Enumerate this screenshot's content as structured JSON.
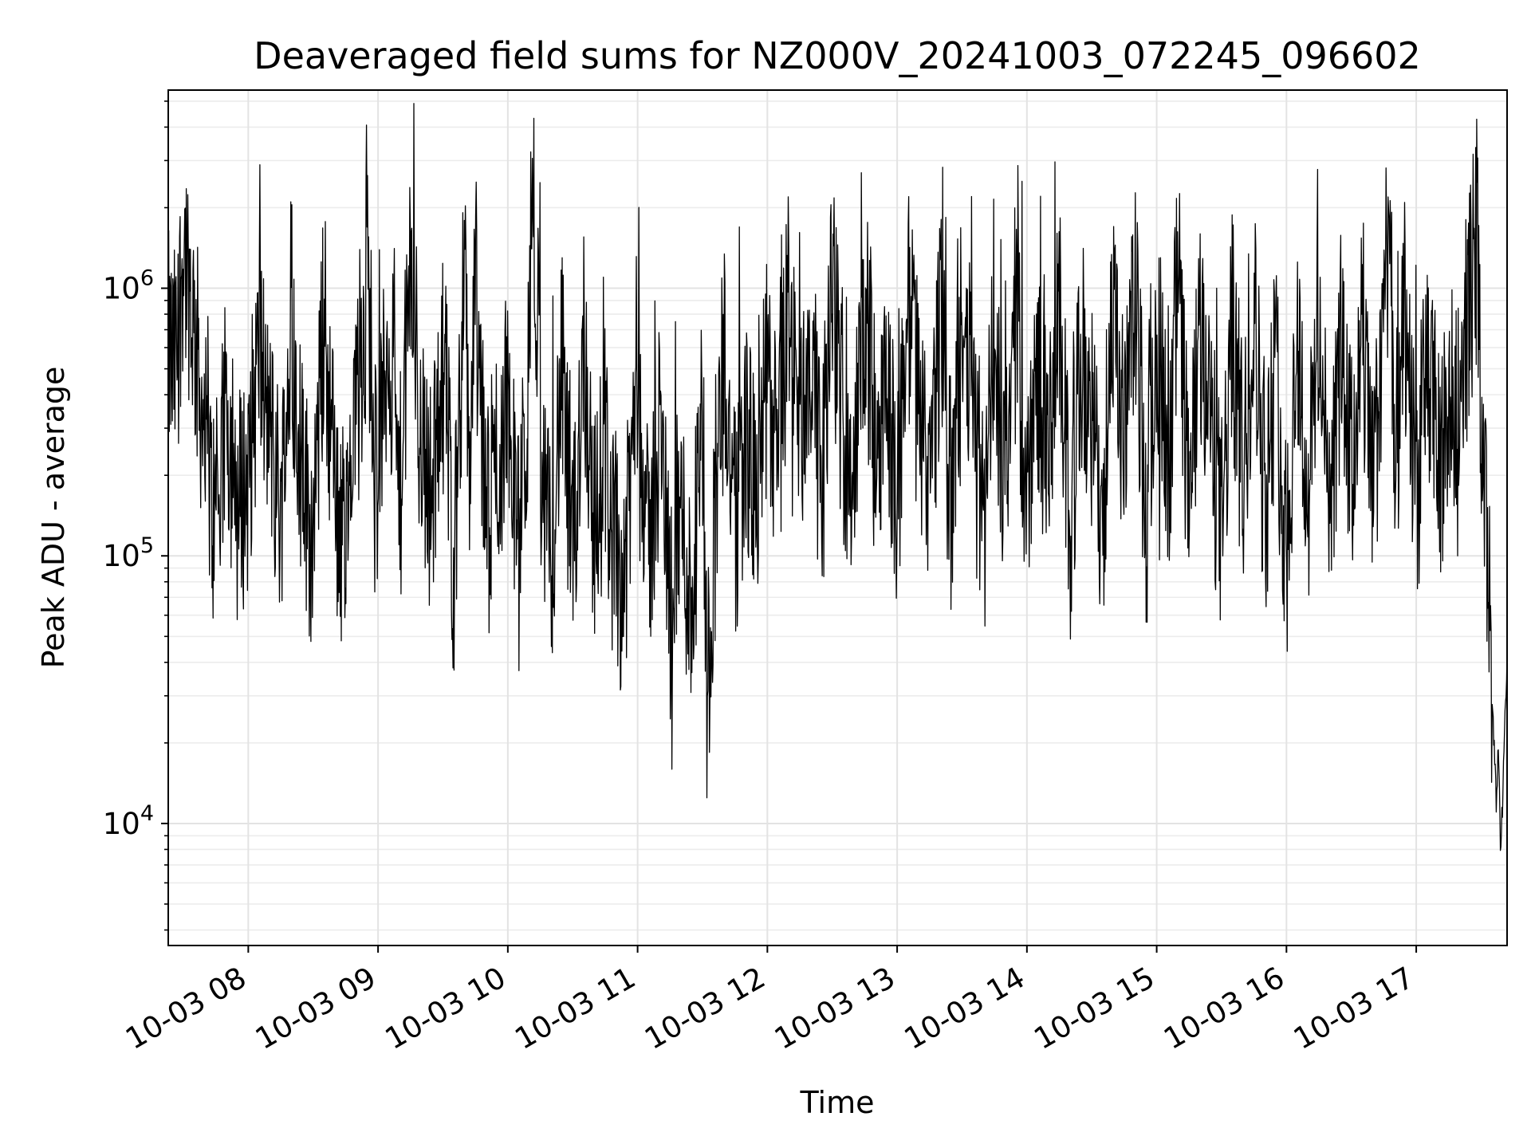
{
  "chart_data": {
    "type": "line",
    "title": "Deaveraged field sums for NZ000V_20241003_072245_096602",
    "xlabel": "Time",
    "ylabel": "Peak ADU - average",
    "x_ticks": [
      "10-03 08",
      "10-03 09",
      "10-03 10",
      "10-03 11",
      "10-03 12",
      "10-03 13",
      "10-03 14",
      "10-03 15",
      "10-03 16",
      "10-03 17"
    ],
    "y_ticks": [
      {
        "value": 10000,
        "base": "10",
        "exp": "4"
      },
      {
        "value": 100000,
        "base": "10",
        "exp": "5"
      },
      {
        "value": 1000000,
        "base": "10",
        "exp": "6"
      }
    ],
    "xlim": [
      "2024-10-03 07:23",
      "2024-10-03 17:42"
    ],
    "ylim": [
      3500,
      5500000
    ],
    "y_scale": "log",
    "grid": true,
    "legend": "none",
    "line_color": "#000000",
    "series": [
      {
        "x": [
          "07:23",
          "07:25",
          "07:27",
          "07:30",
          "07:33",
          "07:35",
          "07:38",
          "07:40",
          "07:45",
          "07:50",
          "07:55",
          "08:00",
          "08:05",
          "08:10",
          "08:15",
          "08:20",
          "08:25",
          "08:30",
          "08:35",
          "08:40",
          "08:45",
          "08:50",
          "08:55",
          "09:00",
          "09:05",
          "09:10",
          "09:15",
          "09:20",
          "09:25",
          "09:30",
          "09:35",
          "09:40",
          "09:42",
          "09:45",
          "09:50",
          "09:55",
          "10:00",
          "10:05",
          "10:10",
          "10:12",
          "10:13",
          "10:14",
          "10:16",
          "10:20",
          "10:25",
          "10:30",
          "10:35",
          "10:40",
          "10:45",
          "10:50",
          "10:55",
          "11:00",
          "11:05",
          "11:10",
          "11:15",
          "11:20",
          "11:25",
          "11:30",
          "11:32",
          "11:35",
          "11:40",
          "11:45",
          "11:50",
          "11:55",
          "12:00",
          "12:05",
          "12:10",
          "12:15",
          "12:20",
          "12:25",
          "12:30",
          "12:35",
          "12:40",
          "12:45",
          "12:50",
          "12:55",
          "13:00",
          "13:05",
          "13:10",
          "13:15",
          "13:20",
          "13:25",
          "13:30",
          "13:35",
          "13:40",
          "13:45",
          "13:50",
          "13:55",
          "14:00",
          "14:05",
          "14:10",
          "14:15",
          "14:20",
          "14:25",
          "14:30",
          "14:35",
          "14:40",
          "14:45",
          "14:50",
          "14:55",
          "15:00",
          "15:05",
          "15:10",
          "15:15",
          "15:20",
          "15:25",
          "15:30",
          "15:35",
          "15:40",
          "15:45",
          "15:50",
          "15:55",
          "16:00",
          "16:05",
          "16:10",
          "16:15",
          "16:20",
          "16:25",
          "16:30",
          "16:35",
          "16:40",
          "16:45",
          "16:48",
          "16:50",
          "16:55",
          "17:00",
          "17:05",
          "17:10",
          "17:15",
          "17:20",
          "17:25",
          "17:28",
          "17:30",
          "17:33",
          "17:35",
          "17:37",
          "17:38",
          "17:39",
          "17:40",
          "17:41",
          "17:42"
        ],
        "y": [
          600000,
          500000,
          550000,
          1500000,
          1000000,
          700000,
          400000,
          250000,
          120000,
          350000,
          150000,
          200000,
          600000,
          280000,
          150000,
          700000,
          200000,
          110000,
          800000,
          180000,
          100000,
          300000,
          1100000,
          200000,
          700000,
          150000,
          1200000,
          300000,
          150000,
          700000,
          90000,
          1200000,
          200000,
          1100000,
          120000,
          200000,
          400000,
          100000,
          500000,
          3500000,
          200000,
          800000,
          150000,
          100000,
          500000,
          80000,
          700000,
          120000,
          250000,
          80000,
          100000,
          600000,
          90000,
          300000,
          80000,
          150000,
          60000,
          400000,
          30000,
          100000,
          600000,
          120000,
          300000,
          150000,
          500000,
          200000,
          1000000,
          250000,
          700000,
          150000,
          1000000,
          300000,
          200000,
          800000,
          250000,
          500000,
          150000,
          900000,
          400000,
          200000,
          700000,
          150000,
          800000,
          300000,
          120000,
          600000,
          200000,
          900000,
          150000,
          500000,
          200000,
          800000,
          120000,
          600000,
          300000,
          150000,
          700000,
          250000,
          1000000,
          120000,
          800000,
          200000,
          1100000,
          150000,
          600000,
          300000,
          120000,
          700000,
          200000,
          900000,
          150000,
          500000,
          100000,
          700000,
          150000,
          800000,
          120000,
          600000,
          200000,
          700000,
          150000,
          900000,
          2200000,
          200000,
          700000,
          150000,
          600000,
          200000,
          300000,
          500000,
          900000,
          1700000,
          400000,
          100000,
          30000,
          12000,
          20000,
          8000,
          12000,
          25000,
          40000
        ]
      }
    ]
  }
}
